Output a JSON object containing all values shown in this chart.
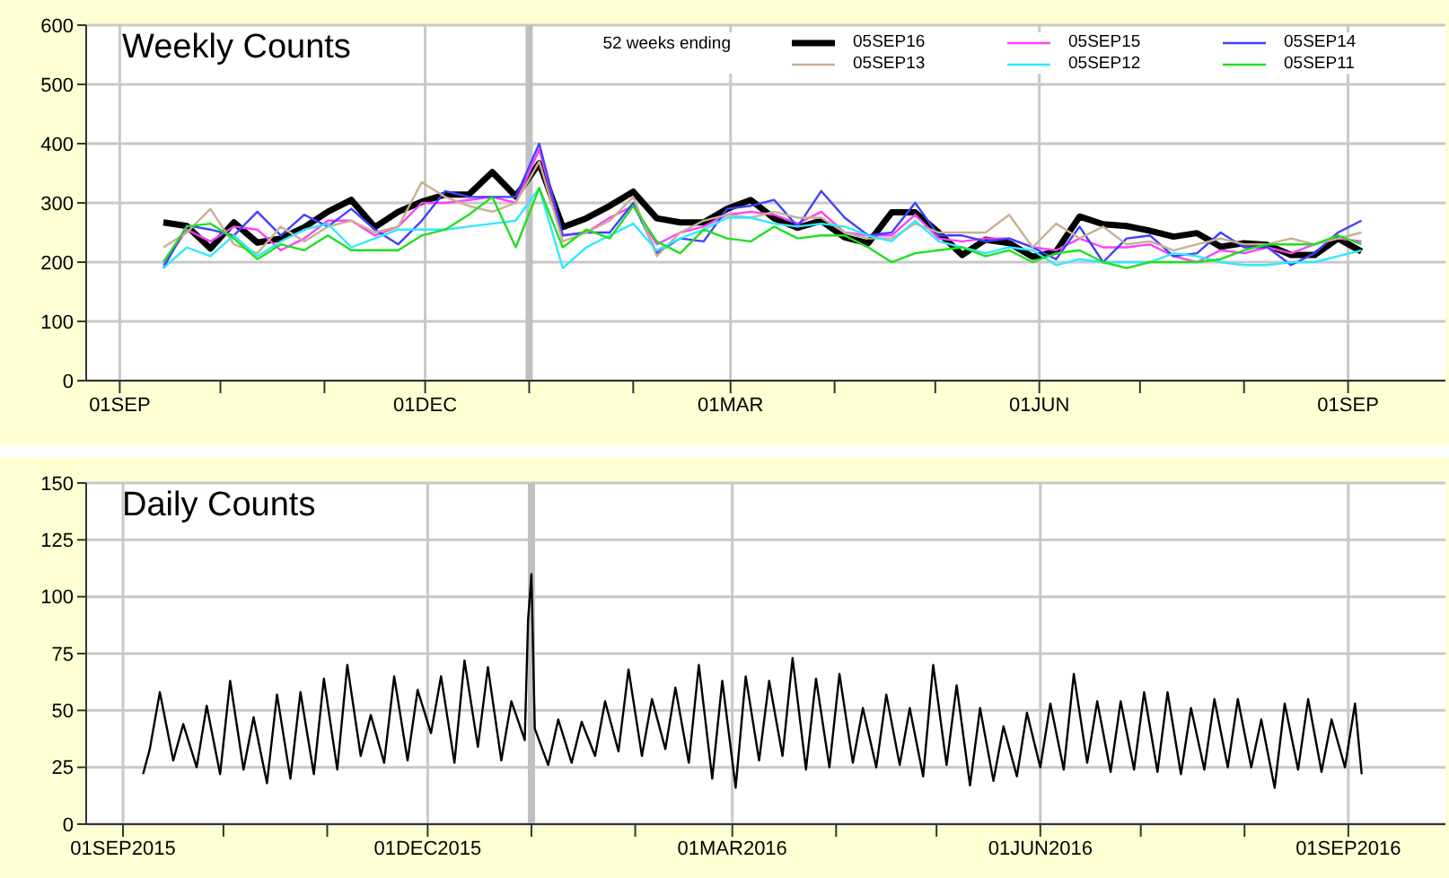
{
  "chart_data": [
    {
      "type": "line",
      "title": "Weekly Counts",
      "legend_title": "52 weeks ending",
      "legend": "top right",
      "grid": true,
      "marker": "none",
      "x": [
        "2015-09-14",
        "2015-09-21",
        "2015-09-28",
        "2015-10-05",
        "2015-10-12",
        "2015-10-19",
        "2015-10-26",
        "2015-11-02",
        "2015-11-09",
        "2015-11-16",
        "2015-11-23",
        "2015-11-30",
        "2015-12-07",
        "2015-12-14",
        "2015-12-21",
        "2015-12-28",
        "2016-01-04",
        "2016-01-11",
        "2016-01-18",
        "2016-01-25",
        "2016-02-01",
        "2016-02-08",
        "2016-02-15",
        "2016-02-22",
        "2016-02-29",
        "2016-03-07",
        "2016-03-14",
        "2016-03-21",
        "2016-03-28",
        "2016-04-04",
        "2016-04-11",
        "2016-04-18",
        "2016-04-25",
        "2016-05-02",
        "2016-05-09",
        "2016-05-16",
        "2016-05-23",
        "2016-05-30",
        "2016-06-06",
        "2016-06-13",
        "2016-06-20",
        "2016-06-27",
        "2016-07-04",
        "2016-07-11",
        "2016-07-18",
        "2016-07-25",
        "2016-08-01",
        "2016-08-08",
        "2016-08-15",
        "2016-08-22",
        "2016-08-29",
        "2016-09-05"
      ],
      "series": [
        {
          "name": "05SEP16",
          "color": "#000000",
          "values": [
            267,
            261,
            223,
            267,
            233,
            240,
            259,
            285,
            305,
            259,
            285,
            302,
            314,
            314,
            352,
            311,
            367,
            259,
            274,
            295,
            319,
            274,
            267,
            267,
            290,
            305,
            274,
            258,
            270,
            242,
            232,
            284,
            284,
            250,
            212,
            238,
            232,
            209,
            218,
            277,
            264,
            261,
            253,
            243,
            249,
            226,
            232,
            229,
            212,
            212,
            240,
            218
          ]
        },
        {
          "name": "05SEP15",
          "color": "#ff40ff",
          "values": [
            195,
            255,
            235,
            260,
            255,
            220,
            240,
            270,
            270,
            245,
            260,
            300,
            300,
            305,
            310,
            300,
            390,
            245,
            250,
            275,
            295,
            230,
            250,
            260,
            280,
            285,
            280,
            265,
            285,
            250,
            245,
            245,
            280,
            240,
            235,
            240,
            240,
            225,
            220,
            240,
            225,
            225,
            230,
            210,
            200,
            220,
            215,
            225,
            215,
            230,
            240,
            235
          ]
        },
        {
          "name": "05SEP14",
          "color": "#4040ff",
          "values": [
            190,
            262,
            255,
            245,
            285,
            245,
            280,
            260,
            290,
            255,
            230,
            270,
            320,
            310,
            310,
            310,
            400,
            245,
            250,
            250,
            300,
            215,
            240,
            235,
            290,
            295,
            305,
            260,
            320,
            275,
            245,
            250,
            300,
            245,
            245,
            235,
            240,
            225,
            205,
            260,
            200,
            240,
            245,
            210,
            215,
            250,
            225,
            225,
            195,
            215,
            250,
            270
          ]
        },
        {
          "name": "05SEP13",
          "color": "#c8b090",
          "values": [
            225,
            250,
            290,
            230,
            215,
            260,
            235,
            260,
            270,
            250,
            260,
            335,
            310,
            295,
            285,
            300,
            370,
            235,
            250,
            270,
            310,
            210,
            250,
            270,
            280,
            275,
            285,
            275,
            275,
            250,
            240,
            240,
            265,
            250,
            250,
            250,
            280,
            225,
            265,
            240,
            260,
            230,
            235,
            220,
            230,
            240,
            230,
            230,
            240,
            230,
            240,
            250
          ]
        },
        {
          "name": "05SEP12",
          "color": "#30e8ff",
          "values": [
            190,
            225,
            210,
            245,
            210,
            235,
            255,
            265,
            225,
            240,
            255,
            255,
            255,
            260,
            265,
            270,
            325,
            190,
            225,
            245,
            265,
            220,
            240,
            255,
            275,
            275,
            265,
            260,
            265,
            260,
            245,
            235,
            270,
            235,
            225,
            215,
            225,
            220,
            195,
            205,
            200,
            200,
            200,
            215,
            210,
            200,
            195,
            195,
            200,
            200,
            210,
            220
          ]
        },
        {
          "name": "05SEP11",
          "color": "#20e020",
          "values": [
            200,
            260,
            265,
            240,
            205,
            230,
            220,
            245,
            220,
            220,
            220,
            245,
            255,
            280,
            310,
            225,
            325,
            225,
            255,
            240,
            295,
            235,
            215,
            255,
            240,
            235,
            260,
            240,
            245,
            245,
            225,
            200,
            215,
            220,
            225,
            210,
            220,
            200,
            215,
            220,
            200,
            190,
            200,
            200,
            200,
            205,
            220,
            230,
            230,
            230,
            245,
            230
          ]
        }
      ],
      "xlim": [
        "2015-08-22",
        "2016-09-30"
      ],
      "xticks": [
        {
          "value": "2015-09-01",
          "label": "01SEP"
        },
        {
          "value": "2015-10-01",
          "label": null
        },
        {
          "value": "2015-11-01",
          "label": null
        },
        {
          "value": "2015-12-01",
          "label": "01DEC"
        },
        {
          "value": "2016-01-01",
          "label": null
        },
        {
          "value": "2016-02-01",
          "label": null
        },
        {
          "value": "2016-03-01",
          "label": "01MAR"
        },
        {
          "value": "2016-04-01",
          "label": null
        },
        {
          "value": "2016-05-01",
          "label": null
        },
        {
          "value": "2016-06-01",
          "label": "01JUN"
        },
        {
          "value": "2016-07-01",
          "label": null
        },
        {
          "value": "2016-08-01",
          "label": null
        },
        {
          "value": "2016-09-01",
          "label": "01SEP"
        }
      ],
      "ylim": [
        0,
        600
      ],
      "yticks": [
        0,
        100,
        200,
        300,
        400,
        500,
        600
      ],
      "ref_lines": [
        {
          "axis": "x",
          "value": "2016-01-01",
          "color": "#c0c0c0"
        }
      ]
    },
    {
      "type": "line",
      "title": "Daily Counts",
      "grid": true,
      "marker": "none",
      "color": "#000000",
      "x": [
        "2015-09-07",
        "2015-09-09",
        "2015-09-12",
        "2015-09-16",
        "2015-09-19",
        "2015-09-23",
        "2015-09-26",
        "2015-09-30",
        "2015-10-03",
        "2015-10-07",
        "2015-10-10",
        "2015-10-14",
        "2015-10-17",
        "2015-10-21",
        "2015-10-24",
        "2015-10-28",
        "2015-10-31",
        "2015-11-04",
        "2015-11-07",
        "2015-11-11",
        "2015-11-14",
        "2015-11-18",
        "2015-11-21",
        "2015-11-25",
        "2015-11-28",
        "2015-12-02",
        "2015-12-05",
        "2015-12-09",
        "2015-12-12",
        "2015-12-16",
        "2015-12-19",
        "2015-12-23",
        "2015-12-26",
        "2015-12-30",
        "2015-12-31",
        "2016-01-01",
        "2016-01-02",
        "2016-01-06",
        "2016-01-09",
        "2016-01-13",
        "2016-01-16",
        "2016-01-20",
        "2016-01-23",
        "2016-01-27",
        "2016-01-30",
        "2016-02-03",
        "2016-02-06",
        "2016-02-10",
        "2016-02-13",
        "2016-02-17",
        "2016-02-20",
        "2016-02-24",
        "2016-02-27",
        "2016-03-02",
        "2016-03-05",
        "2016-03-09",
        "2016-03-12",
        "2016-03-16",
        "2016-03-19",
        "2016-03-23",
        "2016-03-26",
        "2016-03-30",
        "2016-04-02",
        "2016-04-06",
        "2016-04-09",
        "2016-04-13",
        "2016-04-16",
        "2016-04-20",
        "2016-04-23",
        "2016-04-27",
        "2016-04-30",
        "2016-05-04",
        "2016-05-07",
        "2016-05-11",
        "2016-05-14",
        "2016-05-18",
        "2016-05-21",
        "2016-05-25",
        "2016-05-28",
        "2016-06-01",
        "2016-06-04",
        "2016-06-08",
        "2016-06-11",
        "2016-06-15",
        "2016-06-18",
        "2016-06-22",
        "2016-06-25",
        "2016-06-29",
        "2016-07-02",
        "2016-07-06",
        "2016-07-09",
        "2016-07-13",
        "2016-07-16",
        "2016-07-20",
        "2016-07-23",
        "2016-07-27",
        "2016-07-30",
        "2016-08-03",
        "2016-08-06",
        "2016-08-10",
        "2016-08-13",
        "2016-08-17",
        "2016-08-20",
        "2016-08-24",
        "2016-08-27",
        "2016-08-31",
        "2016-09-03",
        "2016-09-05"
      ],
      "values": [
        22,
        33,
        58,
        28,
        44,
        25,
        52,
        22,
        63,
        24,
        47,
        18,
        57,
        20,
        58,
        22,
        64,
        24,
        70,
        30,
        48,
        27,
        65,
        28,
        59,
        40,
        65,
        27,
        72,
        34,
        69,
        28,
        54,
        37,
        90,
        110,
        42,
        26,
        46,
        27,
        45,
        30,
        54,
        32,
        68,
        30,
        55,
        33,
        60,
        27,
        70,
        20,
        63,
        16,
        65,
        28,
        63,
        30,
        73,
        24,
        64,
        25,
        66,
        27,
        51,
        25,
        57,
        26,
        51,
        21,
        70,
        26,
        61,
        17,
        51,
        19,
        43,
        21,
        49,
        25,
        53,
        24,
        66,
        27,
        54,
        23,
        54,
        24,
        58,
        23,
        58,
        22,
        51,
        24,
        55,
        25,
        55,
        25,
        46,
        16,
        53,
        24,
        55,
        23,
        46,
        25,
        53,
        22
      ],
      "xlim": [
        "2015-08-21",
        "2016-09-30"
      ],
      "xticks": [
        {
          "value": "2015-09-01",
          "label": "01SEP2015"
        },
        {
          "value": "2015-10-01",
          "label": null
        },
        {
          "value": "2015-11-01",
          "label": null
        },
        {
          "value": "2015-12-01",
          "label": "01DEC2015"
        },
        {
          "value": "2016-01-01",
          "label": null
        },
        {
          "value": "2016-02-01",
          "label": null
        },
        {
          "value": "2016-03-01",
          "label": "01MAR2016"
        },
        {
          "value": "2016-04-01",
          "label": null
        },
        {
          "value": "2016-05-01",
          "label": null
        },
        {
          "value": "2016-06-01",
          "label": "01JUN2016"
        },
        {
          "value": "2016-07-01",
          "label": null
        },
        {
          "value": "2016-08-01",
          "label": null
        },
        {
          "value": "2016-09-01",
          "label": "01SEP2016"
        }
      ],
      "ylim": [
        0,
        150
      ],
      "yticks": [
        0,
        25,
        50,
        75,
        100,
        125,
        150
      ],
      "ref_lines": [
        {
          "axis": "x",
          "value": "2016-01-01",
          "color": "#c0c0c0"
        }
      ]
    }
  ]
}
